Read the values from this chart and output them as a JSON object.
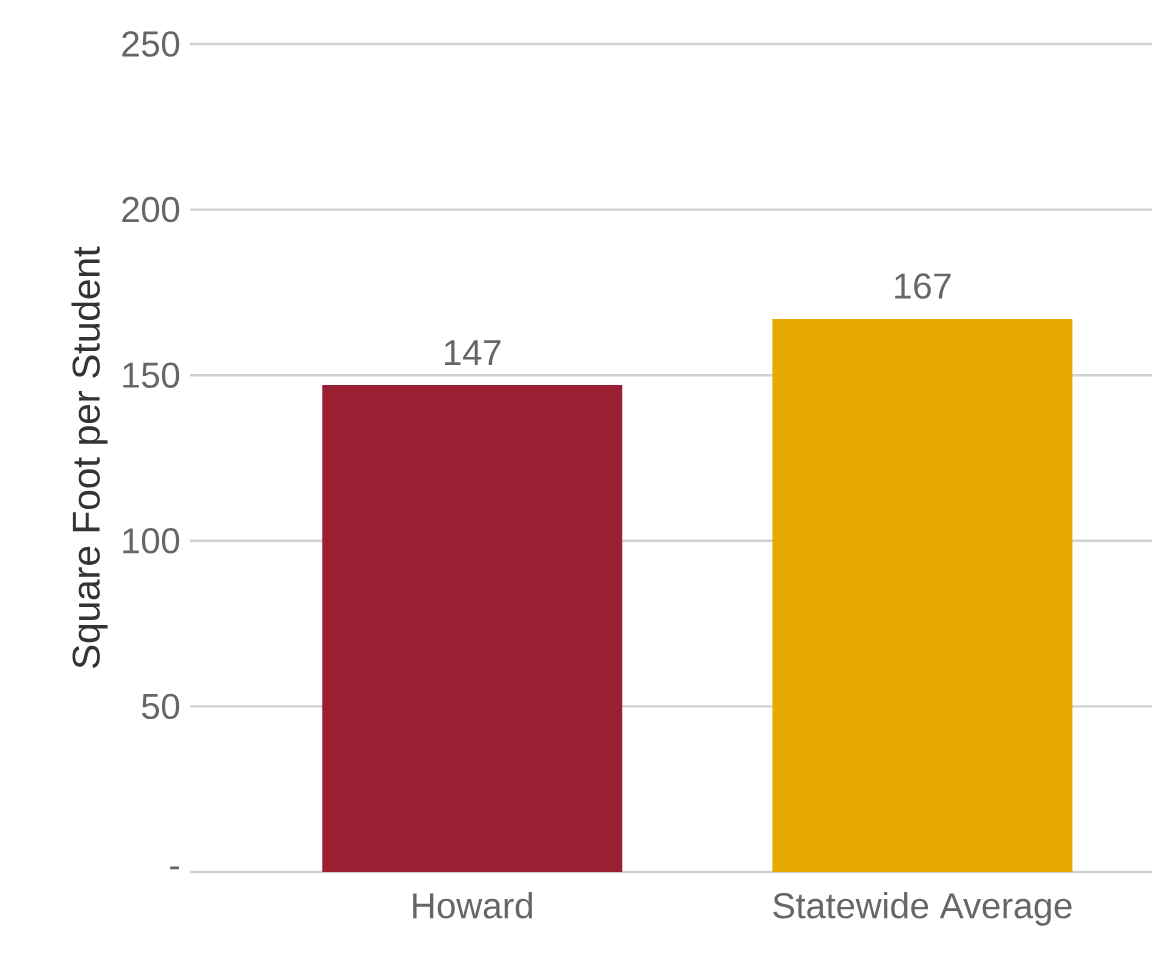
{
  "chart_data": {
    "type": "bar",
    "ylabel": "Square Foot per Student",
    "categories": [
      "Howard",
      "Statewide Average"
    ],
    "values": [
      147,
      167
    ],
    "colors": [
      "#9b1f33",
      "#e8a900"
    ],
    "ylim": [
      0,
      250
    ],
    "yticks": [
      {
        "value": 0,
        "label": "-"
      },
      50,
      100,
      150,
      200,
      250
    ],
    "grid": "y",
    "data_labels": true
  }
}
